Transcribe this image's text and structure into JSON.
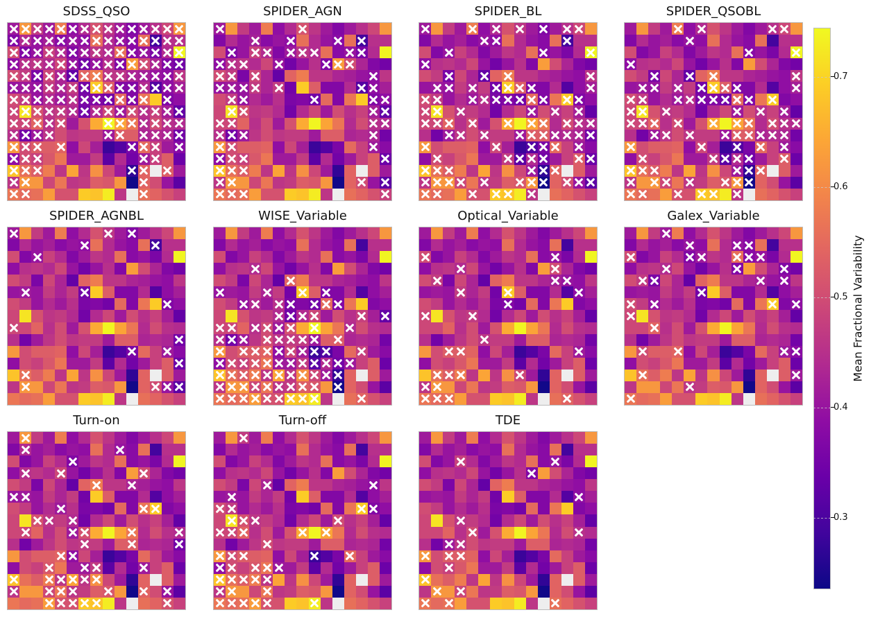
{
  "chart_data": {
    "type": "heatmap",
    "title": "",
    "colormap": "plasma",
    "vmin": 0.235,
    "vmax": 0.745,
    "nan_color": "#eeeeee",
    "grid_size": [
      15,
      15
    ],
    "colorbar": {
      "label": "Mean Fractional Variability",
      "ticks": [
        0.3,
        0.4,
        0.5,
        0.6,
        0.7
      ],
      "tick_labels": [
        "0.3",
        "0.4",
        "0.5",
        "0.6",
        "0.7"
      ]
    },
    "marker": {
      "symbol": "x",
      "color": "#ffffff",
      "meaning": "marked cell"
    },
    "base_values": [
      [
        0.41,
        0.62,
        0.47,
        0.41,
        0.58,
        0.39,
        0.44,
        0.51,
        0.46,
        0.41,
        0.37,
        0.41,
        0.45,
        0.49,
        0.62
      ],
      [
        0.37,
        0.44,
        0.4,
        0.42,
        0.38,
        0.4,
        0.39,
        0.56,
        0.44,
        0.4,
        0.38,
        0.56,
        0.29,
        0.45,
        0.45
      ],
      [
        0.5,
        0.37,
        0.4,
        0.48,
        0.44,
        0.37,
        0.41,
        0.46,
        0.44,
        0.56,
        0.38,
        0.4,
        0.36,
        0.44,
        0.74
      ],
      [
        0.39,
        0.45,
        0.46,
        0.44,
        0.49,
        0.4,
        0.35,
        0.4,
        0.45,
        0.37,
        0.63,
        0.5,
        0.43,
        0.37,
        0.35
      ],
      [
        0.5,
        0.47,
        0.36,
        0.49,
        0.43,
        0.33,
        0.54,
        0.58,
        0.46,
        0.46,
        0.43,
        0.42,
        0.4,
        0.39,
        0.46
      ],
      [
        0.4,
        0.41,
        0.4,
        0.47,
        0.43,
        0.47,
        0.35,
        0.69,
        0.53,
        0.37,
        0.37,
        0.44,
        0.31,
        0.39,
        0.42
      ],
      [
        0.5,
        0.47,
        0.4,
        0.44,
        0.41,
        0.45,
        0.36,
        0.37,
        0.35,
        0.55,
        0.37,
        0.57,
        0.69,
        0.37,
        0.39
      ],
      [
        0.49,
        0.72,
        0.51,
        0.46,
        0.47,
        0.44,
        0.35,
        0.44,
        0.49,
        0.41,
        0.5,
        0.45,
        0.48,
        0.42,
        0.33
      ],
      [
        0.49,
        0.49,
        0.54,
        0.45,
        0.5,
        0.41,
        0.51,
        0.65,
        0.74,
        0.64,
        0.57,
        0.44,
        0.5,
        0.45,
        0.44
      ],
      [
        0.45,
        0.35,
        0.41,
        0.46,
        0.5,
        0.46,
        0.47,
        0.47,
        0.41,
        0.53,
        0.53,
        0.43,
        0.44,
        0.43,
        0.35
      ],
      [
        0.62,
        0.5,
        0.53,
        0.53,
        0.54,
        0.39,
        0.49,
        0.42,
        0.28,
        0.31,
        0.36,
        0.55,
        0.48,
        0.41,
        0.38
      ],
      [
        0.39,
        0.5,
        0.48,
        0.52,
        0.57,
        0.41,
        0.41,
        0.47,
        0.32,
        0.44,
        0.35,
        0.41,
        0.48,
        0.53,
        0.34
      ],
      [
        0.68,
        0.56,
        0.53,
        0.58,
        0.46,
        0.64,
        0.46,
        0.61,
        0.49,
        0.41,
        0.27,
        0.54,
        null,
        0.53,
        0.41
      ],
      [
        0.46,
        0.62,
        0.62,
        0.49,
        0.57,
        0.46,
        0.47,
        0.53,
        0.52,
        0.62,
        0.24,
        0.54,
        0.5,
        0.4,
        0.32
      ],
      [
        0.57,
        0.55,
        0.56,
        0.63,
        0.51,
        0.51,
        0.69,
        0.68,
        0.73,
        0.46,
        null,
        0.56,
        0.54,
        0.51,
        0.48
      ]
    ],
    "panels": [
      {
        "title": "SDSS_QSO",
        "marked": [
          [
            0,
            1,
            2,
            3,
            4,
            5,
            6,
            7,
            8,
            9,
            10,
            11,
            12,
            13,
            14
          ],
          [
            0,
            1,
            2,
            3,
            4,
            5,
            6,
            7,
            8,
            9,
            10,
            11,
            12,
            13,
            14
          ],
          [
            0,
            1,
            2,
            3,
            4,
            5,
            6,
            7,
            8,
            9,
            10,
            11,
            12,
            13,
            14
          ],
          [
            0,
            1,
            2,
            3,
            4,
            5,
            6,
            7,
            8,
            9,
            10,
            11,
            12,
            13,
            14
          ],
          [
            0,
            1,
            2,
            3,
            4,
            5,
            6,
            7,
            8,
            9,
            10,
            11,
            12,
            13,
            14
          ],
          [
            0,
            1,
            2,
            3,
            4,
            5,
            6,
            7,
            8,
            9,
            10,
            11,
            12,
            13,
            14
          ],
          [
            0,
            1,
            2,
            3,
            4,
            5,
            6,
            7,
            8,
            9,
            10,
            11,
            13
          ],
          [
            0,
            1,
            2,
            3,
            4,
            5,
            6,
            7,
            8,
            9,
            10,
            11,
            12,
            13,
            14
          ],
          [
            0,
            1,
            2,
            3,
            4,
            8,
            9,
            10,
            11,
            12,
            13,
            14
          ],
          [
            0,
            1,
            2,
            3,
            8,
            9,
            11,
            12,
            13,
            14
          ],
          [
            0,
            1,
            2,
            4,
            10,
            11,
            12,
            14
          ],
          [
            0,
            1,
            2,
            11,
            12
          ],
          [
            0,
            1,
            2,
            10,
            11,
            13
          ],
          [
            0,
            1,
            11
          ],
          [
            0,
            1,
            11
          ]
        ]
      },
      {
        "title": "SPIDER_AGN",
        "marked": [
          [
            0,
            7
          ],
          [
            3,
            6,
            10,
            12
          ],
          [
            1,
            3,
            4,
            6,
            7,
            8,
            11,
            12
          ],
          [
            0,
            1,
            2,
            5,
            9,
            10,
            11
          ],
          [
            0,
            1,
            3,
            13
          ],
          [
            0,
            1,
            2,
            3,
            5,
            12,
            13
          ],
          [
            1,
            2,
            8,
            13,
            14
          ],
          [
            1,
            2,
            13,
            14
          ],
          [
            0,
            1,
            13,
            14
          ],
          [
            0,
            1,
            2,
            13
          ],
          [
            0,
            1,
            13
          ],
          [
            0,
            1,
            2,
            14
          ],
          [
            0,
            1,
            2
          ],
          [
            0,
            1,
            12,
            14
          ],
          [
            0,
            1,
            2,
            14
          ]
        ]
      },
      {
        "title": "SPIDER_BL",
        "marked": [
          [
            0,
            4,
            6,
            8,
            10,
            12,
            13
          ],
          [
            5,
            6,
            12
          ],
          [
            2,
            10,
            14
          ],
          [
            0
          ],
          [
            2,
            5,
            7,
            14
          ],
          [
            1,
            2,
            4,
            6,
            7,
            8,
            9,
            14
          ],
          [
            0,
            1,
            4,
            5,
            6,
            7,
            8,
            9,
            10,
            12,
            13
          ],
          [
            0,
            1,
            3,
            9,
            11,
            13
          ],
          [
            0,
            1,
            2,
            4,
            7,
            9,
            10,
            12,
            13,
            14
          ],
          [
            2,
            3,
            5,
            8,
            9,
            10,
            11,
            12,
            13,
            14
          ],
          [
            0,
            6,
            9,
            10,
            11,
            13
          ],
          [
            1,
            7,
            8,
            9,
            10,
            13,
            14
          ],
          [
            0,
            1,
            2,
            9,
            10,
            11
          ],
          [
            0,
            1,
            2,
            3,
            5,
            8,
            9,
            10,
            12,
            13,
            14
          ],
          [
            0,
            1,
            4,
            6,
            7,
            9
          ]
        ]
      },
      {
        "title": "SPIDER_QSOBL",
        "marked": [
          [
            4,
            6,
            12,
            13
          ],
          [
            5
          ],
          [
            10,
            14
          ],
          [
            0
          ],
          [
            2,
            5,
            7,
            14
          ],
          [
            1,
            2,
            4,
            6,
            7,
            8,
            9,
            14
          ],
          [
            0,
            1,
            4,
            5,
            6,
            7,
            8,
            9,
            10,
            12
          ],
          [
            0,
            1,
            3,
            9,
            11,
            13
          ],
          [
            0,
            1,
            2,
            4,
            7,
            9,
            10,
            12,
            13,
            14
          ],
          [
            2,
            3,
            5,
            8,
            9,
            10,
            11,
            12,
            13
          ],
          [
            0,
            6,
            9,
            11,
            13
          ],
          [
            1,
            7,
            8,
            9,
            10,
            13
          ],
          [
            0,
            1,
            2,
            9,
            10,
            11
          ],
          [
            0,
            2,
            3,
            5,
            8,
            9,
            10
          ],
          [
            0,
            1,
            4,
            6,
            7,
            9
          ]
        ]
      },
      {
        "title": "SPIDER_AGNBL",
        "marked": [
          [
            0,
            8,
            10
          ],
          [
            6,
            12
          ],
          [
            2
          ],
          [],
          [],
          [
            1,
            6
          ],
          [
            13
          ],
          [],
          [
            0
          ],
          [
            14
          ],
          [
            10,
            13
          ],
          [
            14
          ],
          [
            1
          ],
          [
            1,
            12,
            13,
            14
          ],
          []
        ]
      },
      {
        "title": "WISE_Variable",
        "marked": [
          [],
          [],
          [],
          [
            3
          ],
          [
            6
          ],
          [
            0,
            4,
            7,
            9
          ],
          [
            2,
            3,
            5,
            6,
            8,
            9,
            10
          ],
          [
            5,
            6,
            7,
            8,
            12,
            14
          ],
          [
            0,
            1,
            3,
            4,
            5,
            6,
            8,
            11
          ],
          [
            0,
            1,
            2,
            4,
            5,
            6,
            7,
            8,
            10
          ],
          [
            0,
            2,
            3,
            4,
            5,
            6,
            7,
            8,
            9,
            12
          ],
          [
            0,
            1,
            2,
            3,
            4,
            5,
            6,
            7,
            8,
            9,
            10,
            11
          ],
          [
            0,
            1,
            2,
            3,
            4,
            5,
            6,
            7,
            8,
            9,
            10
          ],
          [
            0,
            1,
            2,
            3,
            4,
            5,
            6,
            7,
            8,
            10
          ],
          [
            0,
            1,
            2,
            3,
            4,
            5,
            6,
            7,
            8,
            12
          ]
        ]
      },
      {
        "title": "Optical_Variable",
        "marked": [
          [],
          [],
          [
            0,
            11
          ],
          [
            3,
            11
          ],
          [
            1,
            11,
            12
          ],
          [
            3,
            7,
            13
          ],
          [
            7
          ],
          [
            0,
            4
          ],
          [],
          [
            5
          ],
          [
            2,
            3,
            13
          ],
          [],
          [
            1,
            2,
            3,
            8
          ],
          [
            0,
            1
          ],
          [
            0,
            1,
            2,
            12
          ]
        ]
      },
      {
        "title": "Galex_Variable",
        "marked": [
          [
            3
          ],
          [
            5,
            9,
            10
          ],
          [
            0,
            5,
            6,
            9,
            10,
            11
          ],
          [
            3,
            9,
            13
          ],
          [
            1,
            2,
            11,
            13
          ],
          [
            6
          ],
          [
            0,
            2,
            12,
            14
          ],
          [
            0
          ],
          [
            2
          ],
          [],
          [
            1,
            4,
            13,
            14
          ],
          [],
          [
            1,
            14
          ],
          [
            5
          ],
          [
            0
          ]
        ]
      },
      {
        "title": "Turn-on",
        "marked": [
          [
            1
          ],
          [
            1,
            9
          ],
          [
            5
          ],
          [
            1,
            4,
            11
          ],
          [
            7,
            10
          ],
          [
            0,
            1
          ],
          [
            4,
            11,
            12
          ],
          [
            2,
            3,
            5
          ],
          [
            1,
            5,
            6,
            10,
            14
          ],
          [
            6,
            10,
            14
          ],
          [
            4,
            5
          ],
          [
            3,
            6,
            7,
            11
          ],
          [
            0,
            3,
            4,
            5,
            6,
            7
          ],
          [
            0,
            3,
            4,
            5,
            8,
            11,
            13
          ],
          [
            3,
            4,
            5,
            6,
            7,
            13
          ]
        ]
      },
      {
        "title": "Turn-off",
        "marked": [
          [
            2
          ],
          [],
          [],
          [],
          [
            4,
            13
          ],
          [
            1
          ],
          [
            0,
            1,
            12,
            13
          ],
          [
            1,
            2,
            3,
            10
          ],
          [
            0,
            1,
            2,
            7,
            9
          ],
          [
            4
          ],
          [
            0,
            1,
            2,
            8,
            11
          ],
          [
            0,
            1,
            3,
            4,
            5
          ],
          [
            0,
            1,
            2,
            3,
            4
          ],
          [
            0,
            1,
            4
          ],
          [
            0,
            1,
            2,
            3,
            4,
            8
          ]
        ]
      },
      {
        "title": "TDE",
        "marked": [
          [],
          [],
          [
            3,
            11
          ],
          [
            9
          ],
          [],
          [
            13
          ],
          [],
          [
            3
          ],
          [
            4,
            13
          ],
          [
            2,
            3
          ],
          [
            0,
            2,
            3
          ],
          [
            2
          ],
          [
            0
          ],
          [
            1,
            3
          ],
          [
            0,
            2,
            11
          ]
        ]
      }
    ],
    "layout": {
      "rows": 3,
      "cols": 4,
      "empty_slots": [
        [
          2,
          3
        ]
      ]
    }
  }
}
